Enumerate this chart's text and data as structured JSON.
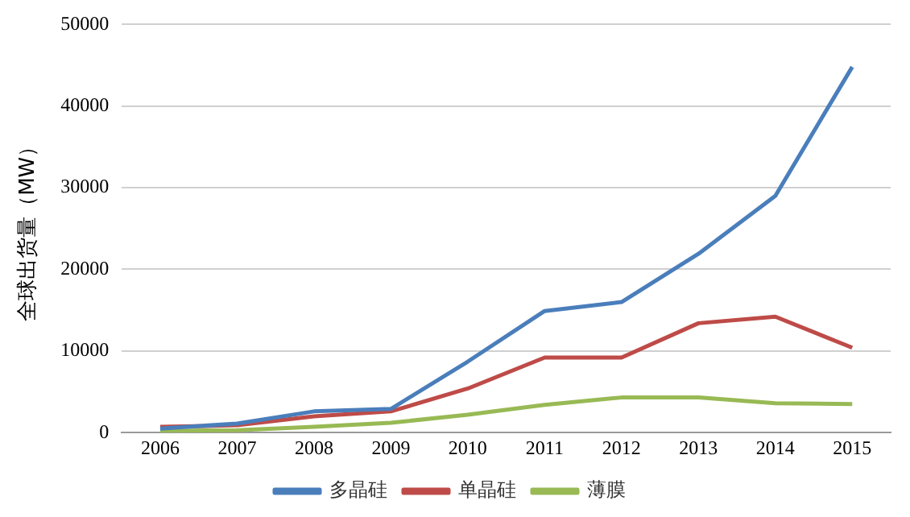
{
  "chart_data": {
    "type": "line",
    "ylabel": "全球出货量（MW）",
    "categories": [
      "2006",
      "2007",
      "2008",
      "2009",
      "2010",
      "2011",
      "2012",
      "2013",
      "2014",
      "2015"
    ],
    "series": [
      {
        "name": "多晶硅",
        "color": "#4a7ebb",
        "values": [
          500,
          1100,
          2600,
          2900,
          8700,
          14900,
          16000,
          21900,
          29000,
          44800
        ]
      },
      {
        "name": "单晶硅",
        "color": "#be4b48",
        "values": [
          700,
          900,
          2000,
          2600,
          5400,
          9200,
          9200,
          13400,
          14200,
          10400
        ]
      },
      {
        "name": "薄膜",
        "color": "#98b954",
        "values": [
          200,
          300,
          700,
          1200,
          2200,
          3400,
          4300,
          4300,
          3600,
          3500
        ]
      }
    ],
    "ylim": [
      0,
      50000
    ],
    "yticks": [
      0,
      10000,
      20000,
      30000,
      40000,
      50000
    ],
    "grid": "y",
    "legend": "bottom",
    "marker": "none",
    "line_style": "solid"
  }
}
